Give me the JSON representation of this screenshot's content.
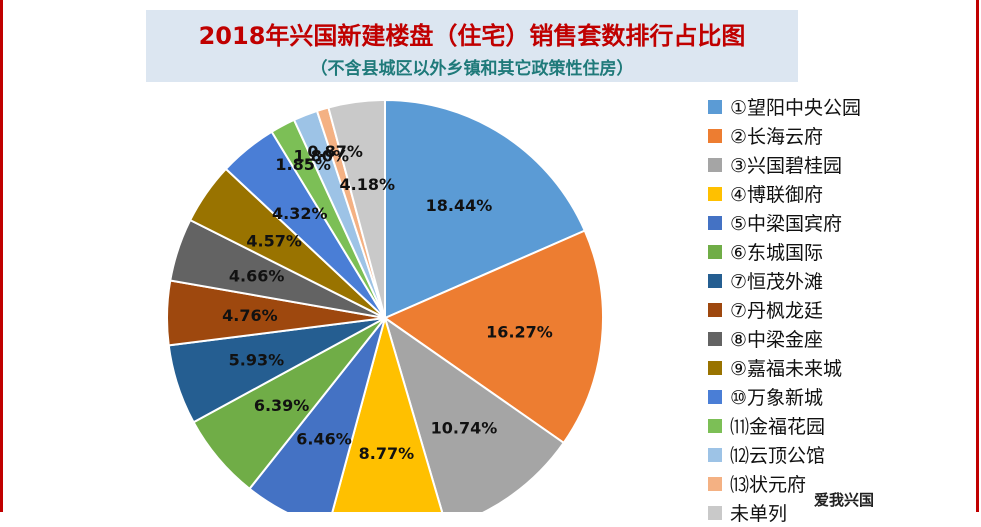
{
  "chart_data": {
    "type": "pie",
    "title": "2018年兴国新建楼盘（住宅）销售套数排行占比图",
    "subtitle": "（不含县城区以外乡镇和其它政策性住房）",
    "legend_position": "right",
    "slices": [
      {
        "label": "①望阳中央公园",
        "value": 18.44,
        "display": "18.44%",
        "color": "#5b9bd5"
      },
      {
        "label": "②长海云府",
        "value": 16.27,
        "display": "16.27%",
        "color": "#ed7d31"
      },
      {
        "label": "③兴国碧桂园",
        "value": 10.74,
        "display": "10.74%",
        "color": "#a5a5a5"
      },
      {
        "label": "④博联御府",
        "value": 8.77,
        "display": "8.77%",
        "color": "#ffc000"
      },
      {
        "label": "⑤中梁国宾府",
        "value": 6.46,
        "display": "6.46%",
        "color": "#4472c4"
      },
      {
        "label": "⑥东城国际",
        "value": 6.39,
        "display": "6.39%",
        "color": "#70ad47"
      },
      {
        "label": "⑦恒茂外滩",
        "value": 5.93,
        "display": "5.93%",
        "color": "#255e91"
      },
      {
        "label": "⑦丹枫龙廷",
        "value": 4.76,
        "display": "4.76%",
        "color": "#9e480e"
      },
      {
        "label": "⑧中梁金座",
        "value": 4.66,
        "display": "4.66%",
        "color": "#636363"
      },
      {
        "label": "⑨嘉福未来城",
        "value": 4.57,
        "display": "4.57%",
        "color": "#997300"
      },
      {
        "label": "⑩万象新城",
        "value": 4.32,
        "display": "4.32%",
        "color": "#4a7ed6"
      },
      {
        "label": "⑾金福花园",
        "value": 1.85,
        "display": "1.85%",
        "color": "#7cbf56"
      },
      {
        "label": "⑿云顶公馆",
        "value": 1.8,
        "display": "1.80%",
        "color": "#9dc3e6"
      },
      {
        "label": "⒀状元府",
        "value": 0.87,
        "display": "0.87%",
        "color": "#f4b183"
      },
      {
        "label": "未单列",
        "value": 4.18,
        "display": "4.18%",
        "color": "#c9c9c9"
      }
    ]
  },
  "watermark": {
    "text": "爱我兴国"
  }
}
